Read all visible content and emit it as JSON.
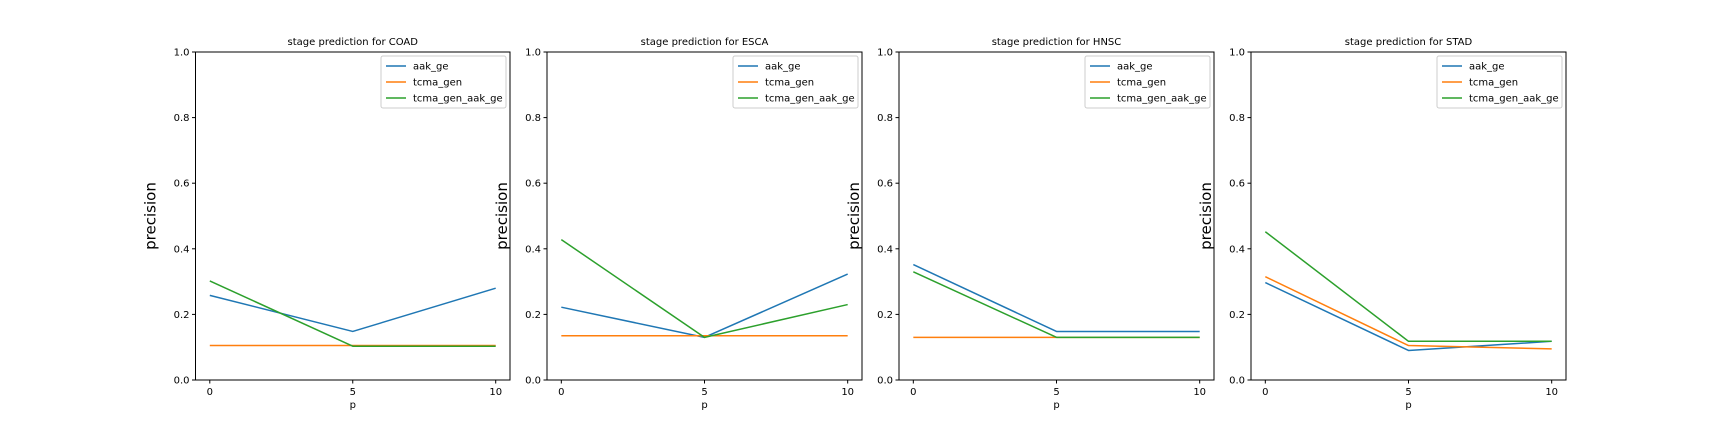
{
  "chart_data": [
    {
      "type": "line",
      "title": "stage prediction for COAD",
      "xlabel": "p",
      "ylabel": "precision",
      "x": [
        0,
        5,
        10
      ],
      "xticks": [
        "0",
        "5",
        "10"
      ],
      "yticks": [
        "0.0",
        "0.2",
        "0.4",
        "0.6",
        "0.8",
        "1.0"
      ],
      "ylim": [
        0,
        1
      ],
      "legend_location": "upper right",
      "grid": false,
      "series": [
        {
          "name": "aak_ge",
          "color": "#1f77b4",
          "values": [
            0.258,
            0.148,
            0.28
          ]
        },
        {
          "name": "tcma_gen",
          "color": "#ff7f0e",
          "values": [
            0.105,
            0.105,
            0.105
          ]
        },
        {
          "name": "tcma_gen_aak_ge",
          "color": "#2ca02c",
          "values": [
            0.302,
            0.103,
            0.103
          ]
        }
      ]
    },
    {
      "type": "line",
      "title": "stage prediction for ESCA",
      "xlabel": "p",
      "ylabel": "precision",
      "x": [
        0,
        5,
        10
      ],
      "xticks": [
        "0",
        "5",
        "10"
      ],
      "yticks": [
        "0.0",
        "0.2",
        "0.4",
        "0.6",
        "0.8",
        "1.0"
      ],
      "ylim": [
        0,
        1
      ],
      "legend_location": "upper right",
      "grid": false,
      "series": [
        {
          "name": "aak_ge",
          "color": "#1f77b4",
          "values": [
            0.222,
            0.13,
            0.323
          ]
        },
        {
          "name": "tcma_gen",
          "color": "#ff7f0e",
          "values": [
            0.135,
            0.135,
            0.135
          ]
        },
        {
          "name": "tcma_gen_aak_ge",
          "color": "#2ca02c",
          "values": [
            0.428,
            0.13,
            0.23
          ]
        }
      ]
    },
    {
      "type": "line",
      "title": "stage prediction for HNSC",
      "xlabel": "p",
      "ylabel": "precision",
      "x": [
        0,
        5,
        10
      ],
      "xticks": [
        "0",
        "5",
        "10"
      ],
      "yticks": [
        "0.0",
        "0.2",
        "0.4",
        "0.6",
        "0.8",
        "1.0"
      ],
      "ylim": [
        0,
        1
      ],
      "legend_location": "upper right",
      "grid": false,
      "series": [
        {
          "name": "aak_ge",
          "color": "#1f77b4",
          "values": [
            0.352,
            0.148,
            0.148
          ]
        },
        {
          "name": "tcma_gen",
          "color": "#ff7f0e",
          "values": [
            0.13,
            0.13,
            0.13
          ]
        },
        {
          "name": "tcma_gen_aak_ge",
          "color": "#2ca02c",
          "values": [
            0.33,
            0.13,
            0.13
          ]
        }
      ]
    },
    {
      "type": "line",
      "title": "stage prediction for STAD",
      "xlabel": "p",
      "ylabel": "precision",
      "x": [
        0,
        5,
        10
      ],
      "xticks": [
        "0",
        "5",
        "10"
      ],
      "yticks": [
        "0.0",
        "0.2",
        "0.4",
        "0.6",
        "0.8",
        "1.0"
      ],
      "ylim": [
        0,
        1
      ],
      "legend_location": "upper right",
      "grid": false,
      "series": [
        {
          "name": "aak_ge",
          "color": "#1f77b4",
          "values": [
            0.297,
            0.09,
            0.118
          ]
        },
        {
          "name": "tcma_gen",
          "color": "#ff7f0e",
          "values": [
            0.315,
            0.105,
            0.095
          ]
        },
        {
          "name": "tcma_gen_aak_ge",
          "color": "#2ca02c",
          "values": [
            0.452,
            0.118,
            0.118
          ]
        }
      ]
    }
  ]
}
